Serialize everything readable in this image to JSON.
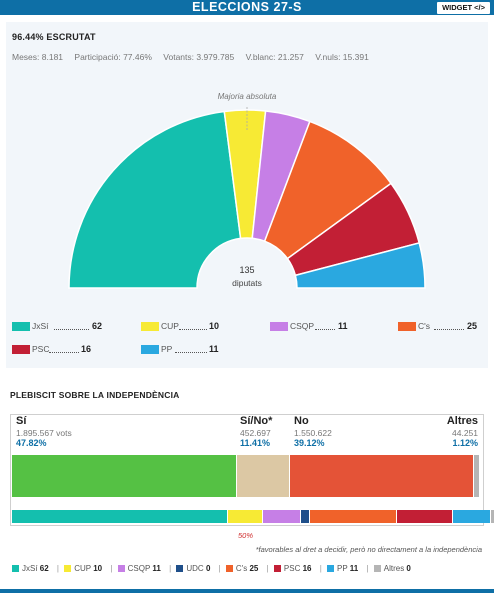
{
  "header": {
    "title": "ELECCIONS 27-S",
    "widget_label": "WIDGET </>"
  },
  "results": {
    "escrutat": "96.44% ESCRUTAT",
    "stats": [
      "Meses: 8.181",
      "Participació: 77.46%",
      "Votants: 3.979.785",
      "V.blanc: 21.257",
      "V.nuls: 15.391"
    ],
    "majority_label": "Majoria absoluta",
    "total_seats": "135",
    "total_label": "diputats"
  },
  "parties": [
    {
      "name": "JxSí",
      "seats": 62,
      "color": "#14bfae"
    },
    {
      "name": "CUP",
      "seats": 10,
      "color": "#f7ea34"
    },
    {
      "name": "CSQP",
      "seats": 11,
      "color": "#c67fe6"
    },
    {
      "name": "C's",
      "seats": 25,
      "color": "#f0622a"
    },
    {
      "name": "PSC",
      "seats": 16,
      "color": "#c21f35"
    },
    {
      "name": "PP",
      "seats": 11,
      "color": "#2aa8e0"
    }
  ],
  "plebiscit": {
    "title": "PLEBISCIT SOBRE LA INDEPENDÈNCIA",
    "columns": [
      {
        "label": "Sí",
        "votes": "1.895.567 vots",
        "pct": "47.82%",
        "share": 47.82,
        "color": "#55c144"
      },
      {
        "label": "Sí/No*",
        "votes": "452.697",
        "pct": "11.41%",
        "share": 11.41,
        "color": "#dcc8a4"
      },
      {
        "label": "No",
        "votes": "1.550.622",
        "pct": "39.12%",
        "share": 39.12,
        "color": "#e45337"
      },
      {
        "label": "Altres",
        "votes": "44.251",
        "pct": "1.12%",
        "share": 1.12,
        "color": "#b5b5b5"
      }
    ],
    "seat_segments": [
      {
        "name": "JxSí",
        "seats": 62,
        "color": "#14bfae"
      },
      {
        "name": "CUP",
        "seats": 10,
        "color": "#f7ea34"
      },
      {
        "name": "CSQP",
        "seats": 11,
        "color": "#c67fe6"
      },
      {
        "name": "UDC",
        "seats": 0,
        "color": "#1f4f8a"
      },
      {
        "name": "C's",
        "seats": 25,
        "color": "#f0622a"
      },
      {
        "name": "PSC",
        "seats": 16,
        "color": "#c21f35"
      },
      {
        "name": "PP",
        "seats": 11,
        "color": "#2aa8e0"
      },
      {
        "name": "Altres",
        "seats": 0,
        "color": "#b5b5b5"
      }
    ],
    "fifty_label": "50%",
    "footnote": "*favorables al dret a decidir, però no directament a la independència"
  }
}
